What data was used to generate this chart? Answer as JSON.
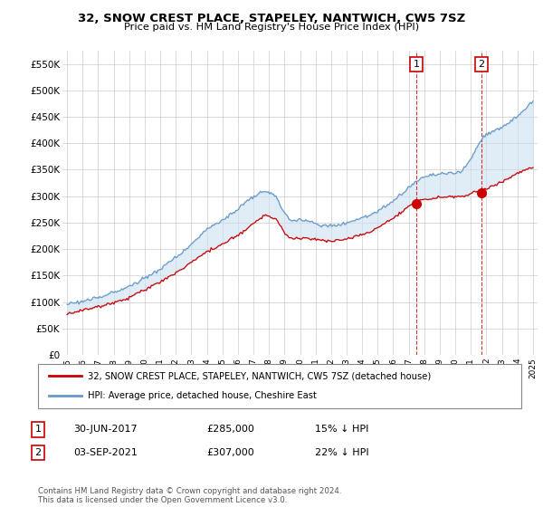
{
  "title": "32, SNOW CREST PLACE, STAPELEY, NANTWICH, CW5 7SZ",
  "subtitle": "Price paid vs. HM Land Registry's House Price Index (HPI)",
  "ylim": [
    0,
    575000
  ],
  "yticks": [
    0,
    50000,
    100000,
    150000,
    200000,
    250000,
    300000,
    350000,
    400000,
    450000,
    500000,
    550000
  ],
  "legend_line1": "32, SNOW CREST PLACE, STAPELEY, NANTWICH, CW5 7SZ (detached house)",
  "legend_line2": "HPI: Average price, detached house, Cheshire East",
  "annotation1_label": "1",
  "annotation1_date": "30-JUN-2017",
  "annotation1_price": "£285,000",
  "annotation1_pct": "15% ↓ HPI",
  "annotation2_label": "2",
  "annotation2_date": "03-SEP-2021",
  "annotation2_price": "£307,000",
  "annotation2_pct": "22% ↓ HPI",
  "footnote": "Contains HM Land Registry data © Crown copyright and database right 2024.\nThis data is licensed under the Open Government Licence v3.0.",
  "red_color": "#cc0000",
  "blue_color": "#6699cc",
  "fill_color": "#cce0f0",
  "annotation_box_color": "#cc0000",
  "background_color": "#ffffff",
  "grid_color": "#cccccc",
  "sale1_x": 2017.5,
  "sale1_y": 285000,
  "sale2_x": 2021.67,
  "sale2_y": 307000,
  "xlim_left": 1994.7,
  "xlim_right": 2025.3
}
